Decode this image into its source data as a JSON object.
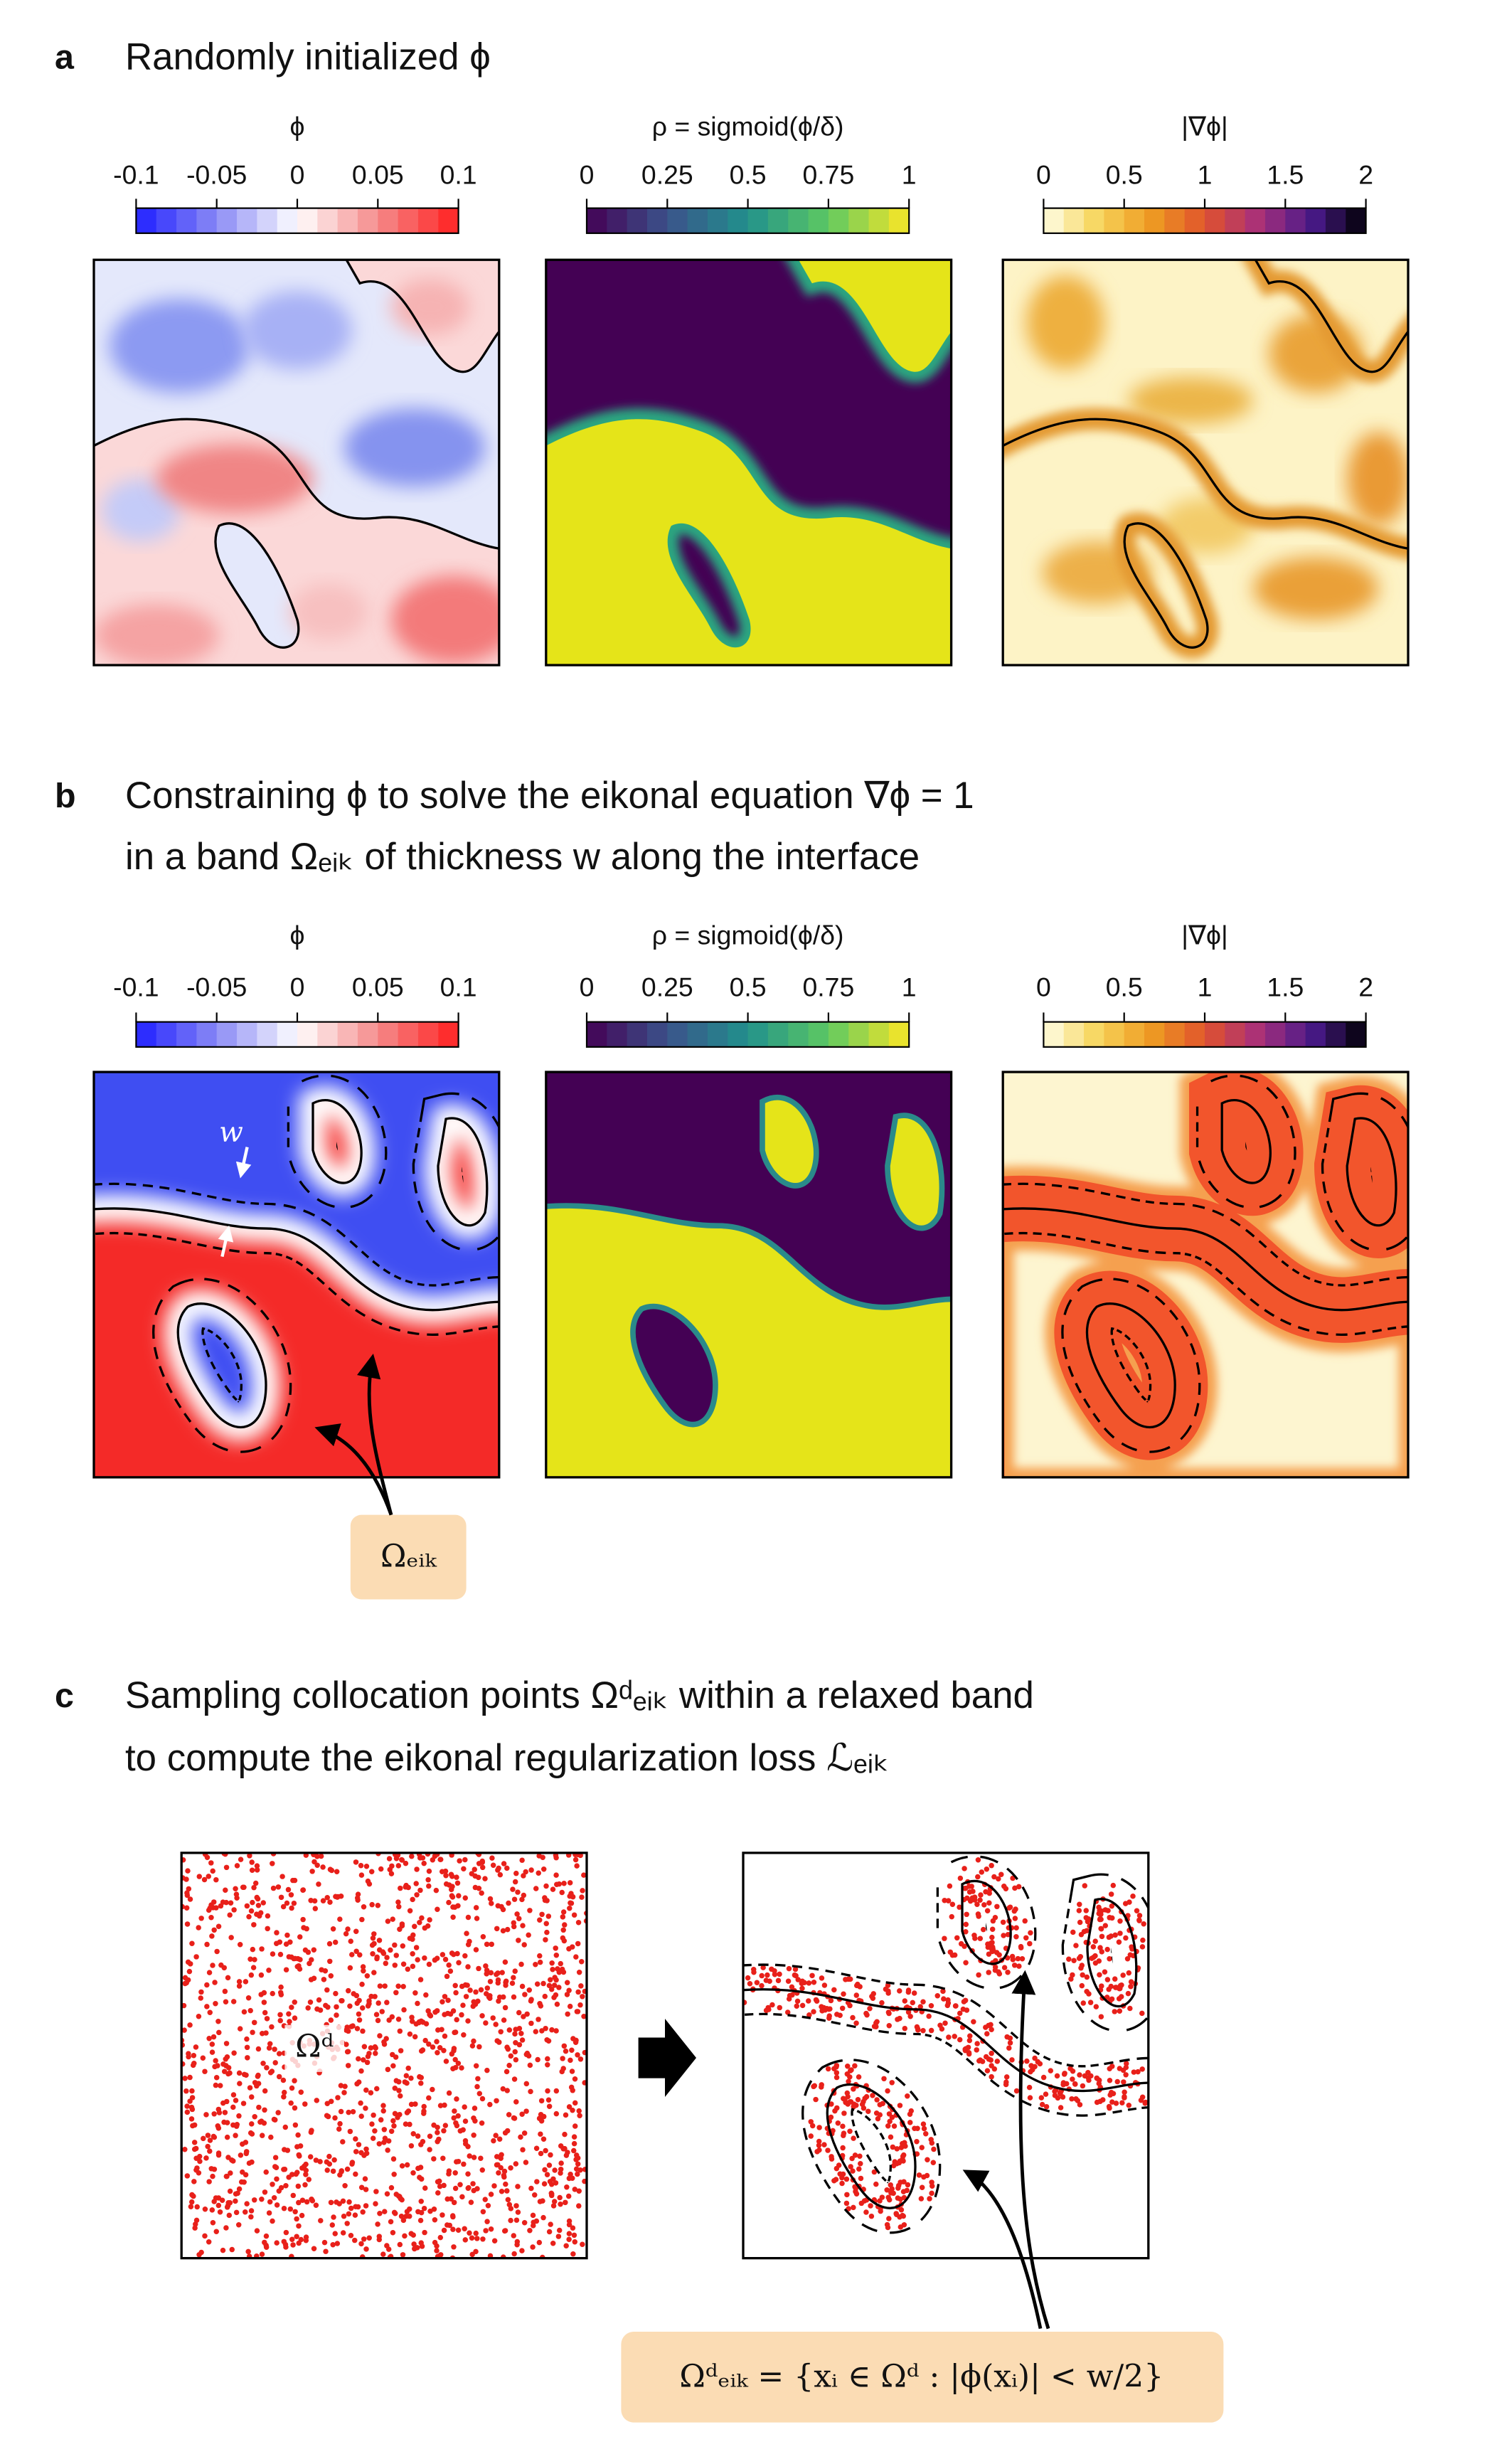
{
  "panels": [
    {
      "label": "a",
      "title": [
        "Randomly initialized ϕ"
      ],
      "colorbars": [
        {
          "label": "ϕ",
          "lim": [
            -0.1,
            0.1
          ],
          "ticks": [
            -0.1,
            -0.05,
            0,
            0.05,
            0.1
          ]
        },
        {
          "label": "ρ = sigmoid(ϕ/δ)",
          "lim": [
            0,
            1
          ],
          "ticks": [
            0,
            0.25,
            0.5,
            0.75,
            1
          ]
        },
        {
          "label": "|∇ϕ|",
          "lim": [
            0,
            2
          ],
          "ticks": [
            0,
            0.5,
            1,
            1.5,
            2
          ]
        }
      ]
    },
    {
      "label": "b",
      "title": [
        "Constraining ϕ to solve the eikonal equation ∇ϕ = 1",
        "in a band Ωₑᵢₖ of thickness w along the interface"
      ],
      "colorbars": [
        {
          "label": "ϕ",
          "lim": [
            -0.1,
            0.1
          ],
          "ticks": [
            -0.1,
            -0.05,
            0,
            0.05,
            0.1
          ]
        },
        {
          "label": "ρ = sigmoid(ϕ/δ)",
          "lim": [
            0,
            1
          ],
          "ticks": [
            0,
            0.25,
            0.5,
            0.75,
            1
          ]
        },
        {
          "label": "|∇ϕ|",
          "lim": [
            0,
            2
          ],
          "ticks": [
            0,
            0.5,
            1,
            1.5,
            2
          ]
        }
      ],
      "annotations": [
        "w",
        "Ωₑᵢₖ"
      ]
    },
    {
      "label": "c",
      "title": [
        "Sampling collocation points Ωᵈₑᵢₖ within a relaxed band",
        "to compute the eikonal regularization loss ℒₑᵢₖ"
      ],
      "annotations": [
        "Ωᵈ",
        "Ωᵈₑᵢₖ = {xᵢ ∈ Ωᵈ : |ϕ(xᵢ)| < w/2}"
      ]
    }
  ]
}
